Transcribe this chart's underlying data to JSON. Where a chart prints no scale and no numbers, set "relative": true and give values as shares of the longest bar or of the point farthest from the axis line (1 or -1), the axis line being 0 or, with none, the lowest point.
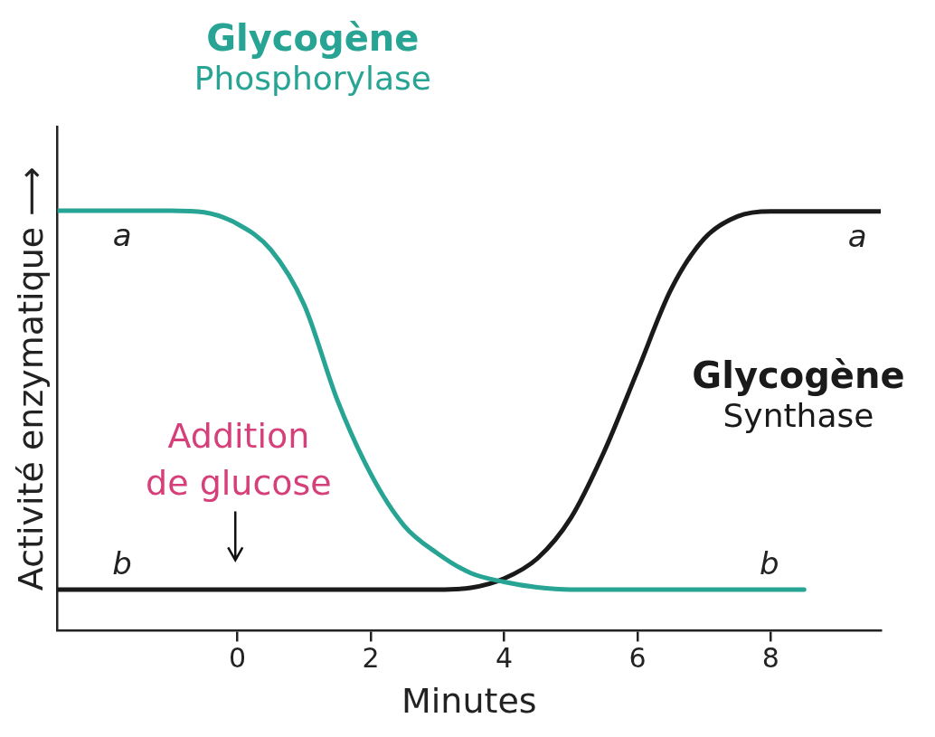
{
  "chart_data": {
    "type": "line",
    "relative": true,
    "xlabel": "Minutes",
    "ylabel": "Activité enzymatique ⟶",
    "xlim": [
      -2.7,
      9.65
    ],
    "xticks": [
      0,
      2,
      4,
      6,
      8
    ],
    "grid": false,
    "legend": false,
    "marker": "none",
    "line_style": "solid",
    "series": [
      {
        "name": "Glycogène Phosphorylase",
        "color": "#27a493",
        "x": [
          -2.7,
          -1,
          -0.5,
          0,
          0.5,
          1,
          1.5,
          2,
          2.5,
          3,
          3.5,
          4,
          4.5,
          5,
          8.5
        ],
        "values": [
          1,
          1,
          0.996,
          0.968,
          0.907,
          0.776,
          0.548,
          0.373,
          0.25,
          0.184,
          0.137,
          0.116,
          0.103,
          0.098,
          0.098
        ]
      },
      {
        "name": "Glycogène Synthase",
        "color": "#1a1a1a",
        "x": [
          -2.7,
          3,
          3.5,
          4,
          4.5,
          5,
          5.5,
          6,
          6.5,
          7,
          7.5,
          8,
          9.65
        ],
        "values": [
          0.098,
          0.098,
          0.102,
          0.124,
          0.172,
          0.268,
          0.426,
          0.618,
          0.811,
          0.933,
          0.986,
          0.998,
          0.998
        ]
      }
    ],
    "annotations": [
      {
        "text": "a",
        "x": -1.73,
        "y": 1
      },
      {
        "text": "a",
        "x": 9.3,
        "y": 0.998
      },
      {
        "text": "b",
        "x": -1.73,
        "y": 0.098
      },
      {
        "text": "b",
        "x": 7.98,
        "y": 0.098
      },
      "Addition\nde glucose"
    ]
  }
}
